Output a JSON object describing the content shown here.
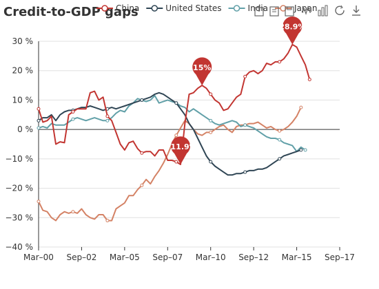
{
  "chart_data": {
    "type": "line",
    "title": "Credit-to-GDP gaps",
    "xlabel": "",
    "ylabel": "",
    "ylim": [
      -40,
      30
    ],
    "y_ticks": [
      "30 %",
      "20 %",
      "10 %",
      "0 %",
      "−10 %",
      "−20 %",
      "−30 %",
      "−40 %"
    ],
    "y_tick_values": [
      30,
      20,
      10,
      0,
      -10,
      -20,
      -30,
      -40
    ],
    "x_tick_labels": [
      "Mar–00",
      "Sep–02",
      "Mar–05",
      "Sep–07",
      "Mar–10",
      "Sep–12",
      "Mar–15",
      "Sep–17"
    ],
    "x_range": [
      "2000-03",
      "2017-09"
    ],
    "grid": "horizontal",
    "legend_position": "top",
    "series": [
      {
        "name": "China",
        "color": "#c23531",
        "points": [
          [
            "2000-03",
            7
          ],
          [
            "2000-06",
            2.5
          ],
          [
            "2000-09",
            3
          ],
          [
            "2000-12",
            4.5
          ],
          [
            "2001-03",
            -5
          ],
          [
            "2001-06",
            -4.2
          ],
          [
            "2001-09",
            -4.5
          ],
          [
            "2001-12",
            5
          ],
          [
            "2002-03",
            6
          ],
          [
            "2002-06",
            7
          ],
          [
            "2002-09",
            7
          ],
          [
            "2002-12",
            7
          ],
          [
            "2003-03",
            12.5
          ],
          [
            "2003-06",
            13
          ],
          [
            "2003-09",
            10
          ],
          [
            "2003-12",
            11
          ],
          [
            "2004-03",
            4.5
          ],
          [
            "2004-06",
            3
          ],
          [
            "2004-09",
            -1
          ],
          [
            "2004-12",
            -5
          ],
          [
            "2005-03",
            -7
          ],
          [
            "2005-06",
            -4.5
          ],
          [
            "2005-09",
            -4
          ],
          [
            "2005-12",
            -6.5
          ],
          [
            "2006-03",
            -8
          ],
          [
            "2006-06",
            -7.5
          ],
          [
            "2006-09",
            -7.5
          ],
          [
            "2006-12",
            -9
          ],
          [
            "2007-03",
            -7
          ],
          [
            "2007-06",
            -7
          ],
          [
            "2007-09",
            -10.5
          ],
          [
            "2007-12",
            -10.5
          ],
          [
            "2008-03",
            -11
          ],
          [
            "2008-06",
            -11.9
          ],
          [
            "2008-09",
            2
          ],
          [
            "2008-12",
            12
          ],
          [
            "2009-03",
            12.5
          ],
          [
            "2009-06",
            14
          ],
          [
            "2009-09",
            15
          ],
          [
            "2009-12",
            14
          ],
          [
            "2010-03",
            12
          ],
          [
            "2010-06",
            10
          ],
          [
            "2010-09",
            9
          ],
          [
            "2010-12",
            6.5
          ],
          [
            "2011-03",
            7
          ],
          [
            "2011-06",
            9
          ],
          [
            "2011-09",
            11
          ],
          [
            "2011-12",
            12
          ],
          [
            "2012-03",
            18
          ],
          [
            "2012-06",
            19.5
          ],
          [
            "2012-09",
            20
          ],
          [
            "2012-12",
            19
          ],
          [
            "2013-03",
            20
          ],
          [
            "2013-06",
            22.5
          ],
          [
            "2013-09",
            22
          ],
          [
            "2013-12",
            23
          ],
          [
            "2014-03",
            23
          ],
          [
            "2014-06",
            24
          ],
          [
            "2014-09",
            26
          ],
          [
            "2014-12",
            28.9
          ],
          [
            "2015-03",
            28
          ],
          [
            "2015-06",
            25
          ],
          [
            "2015-09",
            22
          ],
          [
            "2015-12",
            17
          ]
        ]
      },
      {
        "name": "United States",
        "color": "#2f4554",
        "points": [
          [
            "2000-03",
            3
          ],
          [
            "2000-06",
            4
          ],
          [
            "2000-09",
            4
          ],
          [
            "2000-12",
            5
          ],
          [
            "2001-03",
            3
          ],
          [
            "2001-06",
            5
          ],
          [
            "2001-09",
            6
          ],
          [
            "2001-12",
            6.5
          ],
          [
            "2002-03",
            6.5
          ],
          [
            "2002-06",
            7
          ],
          [
            "2002-09",
            7.5
          ],
          [
            "2002-12",
            7.5
          ],
          [
            "2003-03",
            8
          ],
          [
            "2003-06",
            7.5
          ],
          [
            "2003-09",
            7
          ],
          [
            "2003-12",
            6.5
          ],
          [
            "2004-03",
            7
          ],
          [
            "2004-06",
            7.5
          ],
          [
            "2004-09",
            7
          ],
          [
            "2004-12",
            7.5
          ],
          [
            "2005-03",
            8
          ],
          [
            "2005-06",
            8.5
          ],
          [
            "2005-09",
            9
          ],
          [
            "2005-12",
            9.5
          ],
          [
            "2006-03",
            10
          ],
          [
            "2006-06",
            10.5
          ],
          [
            "2006-09",
            11
          ],
          [
            "2006-12",
            12
          ],
          [
            "2007-03",
            12.5
          ],
          [
            "2007-06",
            12
          ],
          [
            "2007-09",
            11
          ],
          [
            "2007-12",
            10
          ],
          [
            "2008-03",
            9
          ],
          [
            "2008-06",
            7
          ],
          [
            "2008-09",
            5
          ],
          [
            "2008-12",
            2
          ],
          [
            "2009-03",
            0
          ],
          [
            "2009-06",
            -3
          ],
          [
            "2009-09",
            -6
          ],
          [
            "2009-12",
            -9
          ],
          [
            "2010-03",
            -11
          ],
          [
            "2010-06",
            -12.5
          ],
          [
            "2010-09",
            -13.5
          ],
          [
            "2010-12",
            -14.5
          ],
          [
            "2011-03",
            -15.5
          ],
          [
            "2011-06",
            -15.5
          ],
          [
            "2011-09",
            -15
          ],
          [
            "2011-12",
            -15
          ],
          [
            "2012-03",
            -14.5
          ],
          [
            "2012-06",
            -14
          ],
          [
            "2012-09",
            -14
          ],
          [
            "2012-12",
            -13.5
          ],
          [
            "2013-03",
            -13.5
          ],
          [
            "2013-06",
            -13
          ],
          [
            "2013-09",
            -12
          ],
          [
            "2013-12",
            -11
          ],
          [
            "2014-03",
            -10
          ],
          [
            "2014-06",
            -9
          ],
          [
            "2014-09",
            -8.5
          ],
          [
            "2014-12",
            -8
          ],
          [
            "2015-03",
            -7.5
          ],
          [
            "2015-06",
            -7
          ]
        ]
      },
      {
        "name": "India",
        "color": "#61a0a8",
        "points": [
          [
            "2000-03",
            0.5
          ],
          [
            "2000-06",
            1
          ],
          [
            "2000-09",
            0.5
          ],
          [
            "2000-12",
            2
          ],
          [
            "2001-03",
            1.5
          ],
          [
            "2001-06",
            1.5
          ],
          [
            "2001-09",
            1.5
          ],
          [
            "2001-12",
            2.5
          ],
          [
            "2002-03",
            3.5
          ],
          [
            "2002-06",
            4
          ],
          [
            "2002-09",
            3.5
          ],
          [
            "2002-12",
            3
          ],
          [
            "2003-03",
            3.5
          ],
          [
            "2003-06",
            4
          ],
          [
            "2003-09",
            3.5
          ],
          [
            "2003-12",
            3
          ],
          [
            "2004-03",
            3
          ],
          [
            "2004-06",
            4
          ],
          [
            "2004-09",
            5.5
          ],
          [
            "2004-12",
            6.5
          ],
          [
            "2005-03",
            6
          ],
          [
            "2005-06",
            8
          ],
          [
            "2005-09",
            9
          ],
          [
            "2005-12",
            10.5
          ],
          [
            "2006-03",
            10
          ],
          [
            "2006-06",
            9.5
          ],
          [
            "2006-09",
            10
          ],
          [
            "2006-12",
            11.5
          ],
          [
            "2007-03",
            9
          ],
          [
            "2007-06",
            9.5
          ],
          [
            "2007-09",
            10
          ],
          [
            "2007-12",
            9.5
          ],
          [
            "2008-03",
            9
          ],
          [
            "2008-06",
            8
          ],
          [
            "2008-09",
            7.5
          ],
          [
            "2008-12",
            6
          ],
          [
            "2009-03",
            7
          ],
          [
            "2009-06",
            6
          ],
          [
            "2009-09",
            5
          ],
          [
            "2009-12",
            4
          ],
          [
            "2010-03",
            3
          ],
          [
            "2010-06",
            2
          ],
          [
            "2010-09",
            1.5
          ],
          [
            "2010-12",
            2
          ],
          [
            "2011-03",
            2.5
          ],
          [
            "2011-06",
            3
          ],
          [
            "2011-09",
            2.5
          ],
          [
            "2011-12",
            1
          ],
          [
            "2012-03",
            1.5
          ],
          [
            "2012-06",
            1
          ],
          [
            "2012-09",
            0.5
          ],
          [
            "2012-12",
            -0.5
          ],
          [
            "2013-03",
            -1.5
          ],
          [
            "2013-06",
            -2.5
          ],
          [
            "2013-09",
            -3
          ],
          [
            "2013-12",
            -3
          ],
          [
            "2014-03",
            -3.5
          ],
          [
            "2014-06",
            -4.5
          ],
          [
            "2014-09",
            -5
          ],
          [
            "2014-12",
            -5.5
          ],
          [
            "2015-03",
            -7.5
          ],
          [
            "2015-06",
            -6
          ],
          [
            "2015-09",
            -7
          ]
        ]
      },
      {
        "name": "Japan",
        "color": "#d48265",
        "points": [
          [
            "2000-03",
            -24.5
          ],
          [
            "2000-06",
            -27.5
          ],
          [
            "2000-09",
            -28
          ],
          [
            "2000-12",
            -30
          ],
          [
            "2001-03",
            -31
          ],
          [
            "2001-06",
            -29
          ],
          [
            "2001-09",
            -28
          ],
          [
            "2001-12",
            -28.5
          ],
          [
            "2002-03",
            -28
          ],
          [
            "2002-06",
            -28.5
          ],
          [
            "2002-09",
            -27
          ],
          [
            "2002-12",
            -29
          ],
          [
            "2003-03",
            -30
          ],
          [
            "2003-06",
            -30.5
          ],
          [
            "2003-09",
            -29
          ],
          [
            "2003-12",
            -29
          ],
          [
            "2004-03",
            -31
          ],
          [
            "2004-06",
            -31
          ],
          [
            "2004-09",
            -27
          ],
          [
            "2004-12",
            -26
          ],
          [
            "2005-03",
            -25
          ],
          [
            "2005-06",
            -22.5
          ],
          [
            "2005-09",
            -22.5
          ],
          [
            "2005-12",
            -20.5
          ],
          [
            "2006-03",
            -19
          ],
          [
            "2006-06",
            -17
          ],
          [
            "2006-09",
            -18.5
          ],
          [
            "2006-12",
            -16
          ],
          [
            "2007-03",
            -14
          ],
          [
            "2007-06",
            -11.5
          ],
          [
            "2007-09",
            -8.5
          ],
          [
            "2007-12",
            -5
          ],
          [
            "2008-03",
            -2
          ],
          [
            "2008-06",
            0.5
          ],
          [
            "2008-09",
            3
          ],
          [
            "2008-12",
            2
          ],
          [
            "2009-03",
            0
          ],
          [
            "2009-06",
            -1.5
          ],
          [
            "2009-09",
            -2
          ],
          [
            "2009-12",
            -1
          ],
          [
            "2010-03",
            -1
          ],
          [
            "2010-06",
            0
          ],
          [
            "2010-09",
            1
          ],
          [
            "2010-12",
            1.5
          ],
          [
            "2011-03",
            0
          ],
          [
            "2011-06",
            -1
          ],
          [
            "2011-09",
            1
          ],
          [
            "2011-12",
            1.5
          ],
          [
            "2012-03",
            1.5
          ],
          [
            "2012-06",
            2
          ],
          [
            "2012-09",
            2
          ],
          [
            "2012-12",
            2.5
          ],
          [
            "2013-03",
            1.5
          ],
          [
            "2013-06",
            0.5
          ],
          [
            "2013-09",
            1
          ],
          [
            "2013-12",
            0
          ],
          [
            "2014-03",
            -0.5
          ],
          [
            "2014-06",
            0
          ],
          [
            "2014-09",
            1
          ],
          [
            "2014-12",
            2.5
          ],
          [
            "2015-03",
            4.5
          ],
          [
            "2015-06",
            7.5
          ]
        ]
      }
    ],
    "markers": [
      {
        "series": "China",
        "label": "28.9%",
        "x": "2014-12",
        "y": 28.9
      },
      {
        "series": "China",
        "label": "15%",
        "x": "2009-09",
        "y": 15
      },
      {
        "series": "China",
        "label": "−11.9%",
        "x": "2008-06",
        "y": -11.9
      }
    ]
  },
  "toolbox": [
    "save-icon",
    "data-view-icon",
    "restore-icon",
    "line-icon",
    "bar-icon",
    "refresh-icon",
    "download-icon"
  ]
}
